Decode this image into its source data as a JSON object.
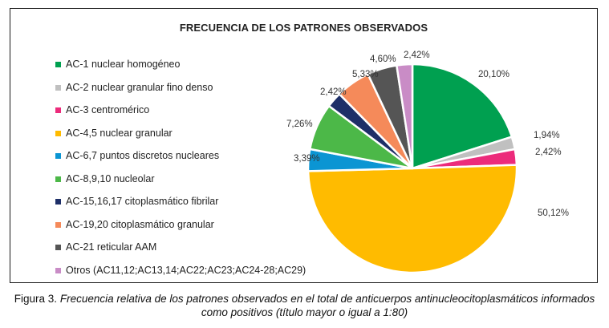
{
  "chart_data": {
    "type": "pie",
    "title": "FRECUENCIA DE LOS PATRONES OBSERVADOS",
    "slices": [
      {
        "label": "AC-1 nuclear homogéneo",
        "value": 20.1,
        "value_label": "20,10%",
        "color": "#00a050"
      },
      {
        "label": "AC-2 nuclear granular fino denso",
        "value": 1.94,
        "value_label": "1,94%",
        "color": "#c0c0c0"
      },
      {
        "label": "AC-3 centromérico",
        "value": 2.42,
        "value_label": "2,42%",
        "color": "#ec2b7b"
      },
      {
        "label": "AC-4,5 nuclear granular",
        "value": 50.12,
        "value_label": "50,12%",
        "color": "#ffbb00"
      },
      {
        "label": "AC-6,7 puntos discretos nucleares",
        "value": 3.39,
        "value_label": "3,39%",
        "color": "#0b95d3"
      },
      {
        "label": "AC-8,9,10 nucleolar",
        "value": 7.26,
        "value_label": "7,26%",
        "color": "#4cb848"
      },
      {
        "label": "AC-15,16,17 citoplasmático fibrilar",
        "value": 2.42,
        "value_label": "2,42%",
        "color": "#1e2f68"
      },
      {
        "label": "AC-19,20 citoplasmático granular",
        "value": 5.33,
        "value_label": "5,33%",
        "color": "#f58a5a"
      },
      {
        "label": "AC-21 reticular AAM",
        "value": 4.6,
        "value_label": "4,60%",
        "color": "#555555"
      },
      {
        "label": "Otros (AC11,12;AC13,14;AC22;AC23;AC24-28;AC29)",
        "value": 2.42,
        "value_label": "2,42%",
        "color": "#c98cc6"
      }
    ],
    "legend_position": "left",
    "start_angle_deg": 0,
    "direction": "clockwise"
  },
  "caption": {
    "lead": "Figura 3.",
    "body": "Frecuencia relativa de los patrones observados en el total de anticuerpos antinucleocitoplasmáticos informados como positivos (título mayor o igual a 1:80)"
  }
}
